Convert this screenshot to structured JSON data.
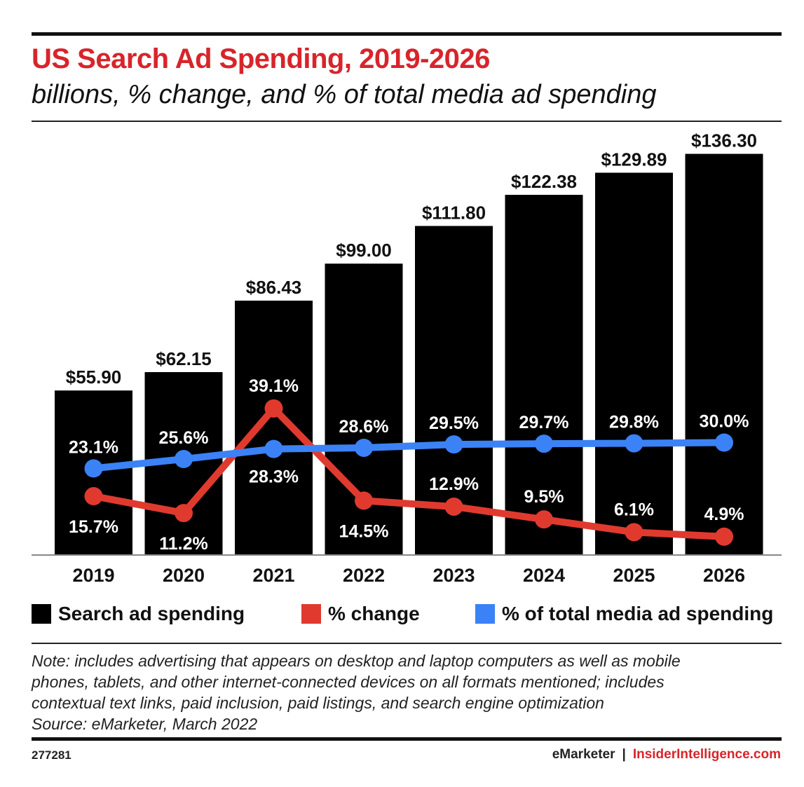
{
  "title": "US Search Ad Spending, 2019-2026",
  "subtitle": "billions, % change, and % of total media ad spending",
  "legend": {
    "spending": "Search ad spending",
    "change": "% change",
    "share": "% of total media ad spending"
  },
  "note_lines": [
    "Note: includes advertising that appears on desktop and laptop computers as well as mobile",
    "phones, tablets, and other internet-connected devices on all formats mentioned; includes",
    "contextual text links, paid inclusion, paid listings, and search engine optimization",
    "Source: eMarketer, March 2022"
  ],
  "chart_id": "277281",
  "footer": {
    "brand1": "eMarketer",
    "separator": "|",
    "brand2": "InsiderIntelligence.com"
  },
  "colors": {
    "title": "#d8242b",
    "bars": "#000000",
    "change": "#e03a2f",
    "share": "#3b82f6"
  },
  "chart_data": {
    "type": "bar",
    "title": "US Search Ad Spending, 2019-2026",
    "subtitle": "billions, % change, and % of total media ad spending",
    "categories": [
      "2019",
      "2020",
      "2021",
      "2022",
      "2023",
      "2024",
      "2025",
      "2026"
    ],
    "ylim": [
      0,
      140
    ],
    "series": [
      {
        "name": "Search ad spending",
        "kind": "bar",
        "unit": "billions",
        "values": [
          55.9,
          62.15,
          86.43,
          99.0,
          111.8,
          122.38,
          129.89,
          136.3
        ],
        "labels": [
          "$55.90",
          "$62.15",
          "$86.43",
          "$99.00",
          "$111.80",
          "$122.38",
          "$129.89",
          "$136.30"
        ]
      },
      {
        "name": "% change",
        "kind": "line",
        "values": [
          15.7,
          11.2,
          39.1,
          14.5,
          12.9,
          9.5,
          6.1,
          4.9
        ],
        "labels": [
          "15.7%",
          "11.2%",
          "39.1%",
          "14.5%",
          "12.9%",
          "9.5%",
          "6.1%",
          "4.9%"
        ]
      },
      {
        "name": "% of total media ad spending",
        "kind": "line",
        "values": [
          23.1,
          25.6,
          28.3,
          28.6,
          29.5,
          29.7,
          29.8,
          30.0
        ],
        "labels": [
          "23.1%",
          "25.6%",
          "28.3%",
          "28.6%",
          "29.5%",
          "29.7%",
          "29.8%",
          "30.0%"
        ]
      }
    ]
  }
}
